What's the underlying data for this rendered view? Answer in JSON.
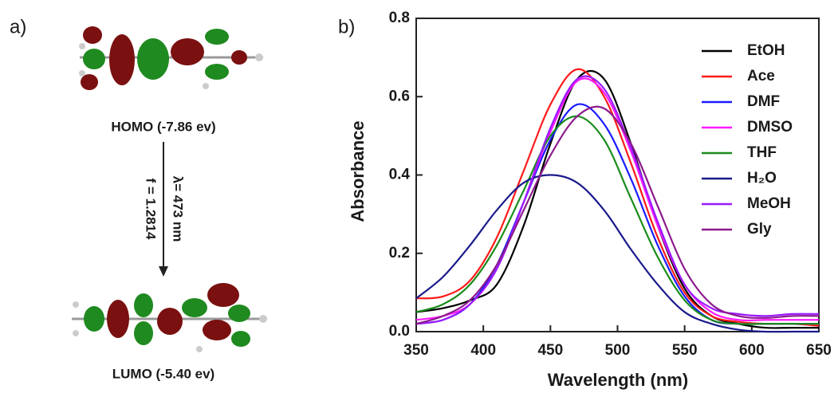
{
  "diagram": {
    "panel_label": "a)",
    "homo_label": "HOMO (-7.86 ev)",
    "transition_wavelength": "λ= 473 nm",
    "oscillator_strength": "f = 1.2814",
    "lumo_label": "LUMO (-5.40 ev)"
  },
  "chart_data": {
    "type": "line",
    "panel_label": "b)",
    "x_label": "Wavelength (nm)",
    "y_label": "Absorbance",
    "x": [
      350,
      370,
      390,
      410,
      430,
      450,
      470,
      490,
      510,
      530,
      550,
      570,
      590,
      610,
      630,
      650
    ],
    "series": [
      {
        "name": "EtOH",
        "color": "#000000",
        "values": [
          0.05,
          0.06,
          0.08,
          0.12,
          0.27,
          0.48,
          0.645,
          0.645,
          0.48,
          0.27,
          0.11,
          0.04,
          0.02,
          0.01,
          0.01,
          0.01
        ]
      },
      {
        "name": "Ace",
        "color": "#ff1a1a",
        "values": [
          0.085,
          0.09,
          0.13,
          0.24,
          0.41,
          0.58,
          0.67,
          0.6,
          0.43,
          0.24,
          0.1,
          0.04,
          0.025,
          0.02,
          0.02,
          0.015
        ]
      },
      {
        "name": "DMF",
        "color": "#1a1aff",
        "values": [
          0.02,
          0.03,
          0.07,
          0.17,
          0.33,
          0.49,
          0.58,
          0.53,
          0.39,
          0.22,
          0.09,
          0.03,
          0.02,
          0.02,
          0.02,
          0.02
        ]
      },
      {
        "name": "DMSO",
        "color": "#ff19ff",
        "values": [
          0.03,
          0.04,
          0.07,
          0.16,
          0.33,
          0.51,
          0.64,
          0.61,
          0.46,
          0.27,
          0.12,
          0.05,
          0.03,
          0.03,
          0.03,
          0.03
        ]
      },
      {
        "name": "THF",
        "color": "#1a8c1a",
        "values": [
          0.05,
          0.07,
          0.12,
          0.22,
          0.36,
          0.5,
          0.55,
          0.49,
          0.34,
          0.19,
          0.08,
          0.03,
          0.02,
          0.02,
          0.02,
          0.02
        ]
      },
      {
        "name": "H₂O",
        "color": "#1a1a8c",
        "values": [
          0.085,
          0.14,
          0.22,
          0.31,
          0.38,
          0.4,
          0.38,
          0.31,
          0.21,
          0.12,
          0.05,
          0.02,
          0.005,
          0,
          0,
          0
        ]
      },
      {
        "name": "MeOH",
        "color": "#9a1aff",
        "values": [
          0.02,
          0.03,
          0.07,
          0.16,
          0.33,
          0.52,
          0.645,
          0.62,
          0.47,
          0.28,
          0.12,
          0.06,
          0.045,
          0.04,
          0.045,
          0.045
        ]
      },
      {
        "name": "Gly",
        "color": "#8c1a8c",
        "values": [
          0.02,
          0.04,
          0.08,
          0.17,
          0.31,
          0.45,
          0.55,
          0.57,
          0.48,
          0.32,
          0.16,
          0.07,
          0.04,
          0.035,
          0.04,
          0.04
        ]
      }
    ],
    "xlim": [
      350,
      650
    ],
    "xticks": [
      350,
      400,
      450,
      500,
      550,
      600,
      650
    ],
    "ylim": [
      0,
      0.8
    ],
    "yticks": [
      {
        "value": 0,
        "label": "0.0"
      },
      0.2,
      0.4,
      0.6,
      0.8
    ],
    "legend": "upper right"
  }
}
